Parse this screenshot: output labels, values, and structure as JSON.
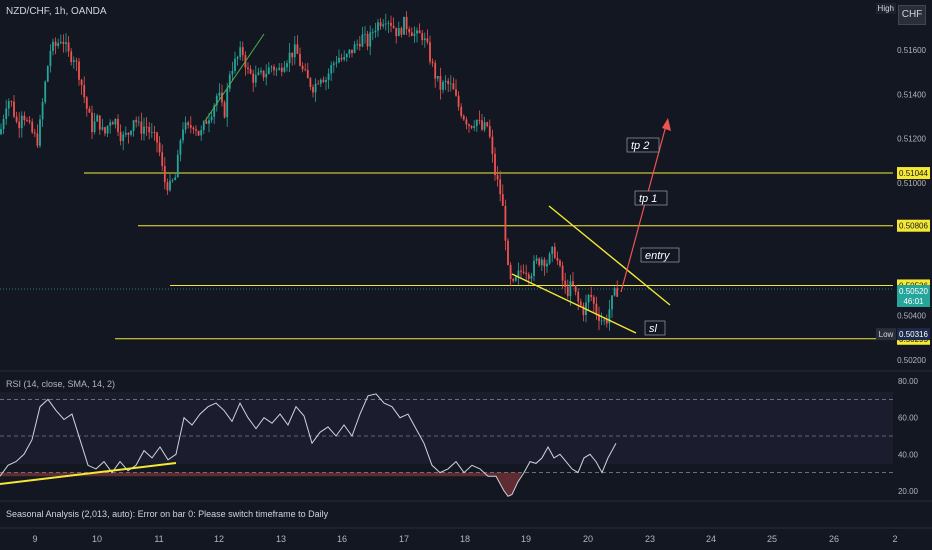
{
  "header": {
    "symbol_line": "NZD/CHF, 1h, OANDA"
  },
  "currency_badge": "CHF",
  "high_badge": "High",
  "low_badge": "Low",
  "rsi_title": "RSI (14, close, SMA, 14, 2)",
  "seasonal_text": "Seasonal Analysis (2,013, auto): Error on bar 0: Please switch timeframe to Daily",
  "colors": {
    "up": "#26a69a",
    "down": "#ef5350",
    "level": "#f5e834",
    "arrow": "#ef5350",
    "background": "#131722"
  },
  "chart_data": [
    {
      "type": "candlestick",
      "title": "NZD/CHF, 1h, OANDA",
      "x_ticks": [
        "9",
        "10",
        "11",
        "12",
        "13",
        "16",
        "17",
        "18",
        "19",
        "20",
        "23",
        "24",
        "25",
        "26",
        "2"
      ],
      "y_ticks": [
        "0.51600",
        "0.51400",
        "0.51200",
        "0.51000",
        "0.50400",
        "0.50200"
      ],
      "ylim": [
        0.5019,
        0.5179
      ],
      "price_path": [
        [
          0,
          0.5122
        ],
        [
          6,
          0.5136
        ],
        [
          10,
          0.5138
        ],
        [
          18,
          0.5125
        ],
        [
          22,
          0.5133
        ],
        [
          28,
          0.5126
        ],
        [
          34,
          0.5121
        ],
        [
          38,
          0.5119
        ],
        [
          44,
          0.5141
        ],
        [
          50,
          0.516
        ],
        [
          56,
          0.5162
        ],
        [
          62,
          0.5166
        ],
        [
          68,
          0.5158
        ],
        [
          74,
          0.5157
        ],
        [
          80,
          0.5148
        ],
        [
          86,
          0.5135
        ],
        [
          92,
          0.5125
        ],
        [
          98,
          0.5129
        ],
        [
          104,
          0.5121
        ],
        [
          110,
          0.5129
        ],
        [
          116,
          0.5128
        ],
        [
          122,
          0.512
        ],
        [
          128,
          0.5122
        ],
        [
          134,
          0.513
        ],
        [
          140,
          0.5124
        ],
        [
          146,
          0.5126
        ],
        [
          152,
          0.5121
        ],
        [
          158,
          0.5118
        ],
        [
          164,
          0.5101
        ],
        [
          170,
          0.5098
        ],
        [
          176,
          0.5103
        ],
        [
          182,
          0.5126
        ],
        [
          188,
          0.5124
        ],
        [
          194,
          0.5127
        ],
        [
          200,
          0.5121
        ],
        [
          206,
          0.5128
        ],
        [
          212,
          0.5133
        ],
        [
          218,
          0.5141
        ],
        [
          224,
          0.513
        ],
        [
          230,
          0.5151
        ],
        [
          236,
          0.5155
        ],
        [
          242,
          0.516
        ],
        [
          248,
          0.515
        ],
        [
          254,
          0.5147
        ],
        [
          260,
          0.5148
        ],
        [
          266,
          0.515
        ],
        [
          272,
          0.5153
        ],
        [
          278,
          0.515
        ],
        [
          284,
          0.5155
        ],
        [
          290,
          0.5158
        ],
        [
          296,
          0.516
        ],
        [
          302,
          0.5151
        ],
        [
          308,
          0.5146
        ],
        [
          314,
          0.5143
        ],
        [
          320,
          0.5149
        ],
        [
          326,
          0.5147
        ],
        [
          332,
          0.5153
        ],
        [
          338,
          0.5157
        ],
        [
          344,
          0.5155
        ],
        [
          350,
          0.5159
        ],
        [
          356,
          0.5162
        ],
        [
          362,
          0.5166
        ],
        [
          368,
          0.5163
        ],
        [
          374,
          0.517
        ],
        [
          380,
          0.5173
        ],
        [
          386,
          0.5175
        ],
        [
          392,
          0.5172
        ],
        [
          398,
          0.5167
        ],
        [
          404,
          0.5172
        ],
        [
          410,
          0.517
        ],
        [
          416,
          0.5166
        ],
        [
          422,
          0.5167
        ],
        [
          428,
          0.516
        ],
        [
          434,
          0.515
        ],
        [
          440,
          0.5143
        ],
        [
          446,
          0.5145
        ],
        [
          452,
          0.5143
        ],
        [
          458,
          0.5135
        ],
        [
          464,
          0.513
        ],
        [
          470,
          0.5126
        ],
        [
          476,
          0.5129
        ],
        [
          482,
          0.5124
        ],
        [
          488,
          0.5126
        ],
        [
          494,
          0.5106
        ],
        [
          500,
          0.5096
        ],
        [
          504,
          0.5085
        ],
        [
          508,
          0.506
        ],
        [
          512,
          0.5052
        ],
        [
          518,
          0.5058
        ],
        [
          524,
          0.5062
        ],
        [
          530,
          0.5059
        ],
        [
          536,
          0.5064
        ],
        [
          542,
          0.5066
        ],
        [
          548,
          0.5064
        ],
        [
          554,
          0.507
        ],
        [
          560,
          0.506
        ],
        [
          566,
          0.505
        ],
        [
          572,
          0.5054
        ],
        [
          578,
          0.5046
        ],
        [
          584,
          0.5042
        ],
        [
          590,
          0.505
        ],
        [
          596,
          0.5042
        ],
        [
          602,
          0.5038
        ],
        [
          606,
          0.5037
        ],
        [
          610,
          0.5044
        ],
        [
          614,
          0.5049
        ],
        [
          618,
          0.5052
        ]
      ],
      "horizontal_levels": [
        {
          "price": 0.51044,
          "label": "0.51044"
        },
        {
          "price": 0.50806,
          "label": "0.50806"
        },
        {
          "price": 0.50536,
          "label": "0.50536"
        },
        {
          "price": 0.50295,
          "label": "0.50295"
        }
      ],
      "current_price": {
        "price": "0.50520",
        "countdown": "46:01"
      },
      "low_marker": {
        "price": "0.50316"
      },
      "annotations": [
        {
          "text": "tp 2",
          "x": 630,
          "y": 148
        },
        {
          "text": "tp 1",
          "x": 638,
          "y": 201
        },
        {
          "text": "entry",
          "x": 644,
          "y": 258
        },
        {
          "text": "sl",
          "x": 648,
          "y": 331
        }
      ],
      "patterns": "falling wedge with projected upward arrow",
      "grid": false
    },
    {
      "type": "line",
      "title": "RSI (14, close, SMA, 14, 2)",
      "y_ticks": [
        "80.00",
        "60.00",
        "40.00",
        "20.00"
      ],
      "ylim": [
        15,
        85
      ],
      "band_levels": [
        70,
        50,
        30
      ],
      "values": [
        [
          0,
          28
        ],
        [
          8,
          34
        ],
        [
          16,
          36
        ],
        [
          24,
          40
        ],
        [
          32,
          48
        ],
        [
          40,
          66
        ],
        [
          48,
          70
        ],
        [
          56,
          64
        ],
        [
          64,
          59
        ],
        [
          72,
          62
        ],
        [
          80,
          48
        ],
        [
          88,
          34
        ],
        [
          96,
          32
        ],
        [
          104,
          36
        ],
        [
          112,
          30
        ],
        [
          120,
          36
        ],
        [
          128,
          31
        ],
        [
          136,
          34
        ],
        [
          144,
          42
        ],
        [
          152,
          38
        ],
        [
          160,
          44
        ],
        [
          168,
          37
        ],
        [
          176,
          40
        ],
        [
          184,
          60
        ],
        [
          192,
          56
        ],
        [
          200,
          62
        ],
        [
          208,
          66
        ],
        [
          216,
          68
        ],
        [
          224,
          64
        ],
        [
          232,
          58
        ],
        [
          240,
          68
        ],
        [
          248,
          60
        ],
        [
          256,
          54
        ],
        [
          264,
          60
        ],
        [
          272,
          57
        ],
        [
          280,
          62
        ],
        [
          288,
          56
        ],
        [
          296,
          66
        ],
        [
          304,
          61
        ],
        [
          312,
          46
        ],
        [
          320,
          52
        ],
        [
          328,
          55
        ],
        [
          336,
          50
        ],
        [
          344,
          56
        ],
        [
          352,
          50
        ],
        [
          360,
          62
        ],
        [
          368,
          72
        ],
        [
          376,
          73
        ],
        [
          384,
          68
        ],
        [
          392,
          66
        ],
        [
          400,
          60
        ],
        [
          408,
          62
        ],
        [
          416,
          54
        ],
        [
          424,
          46
        ],
        [
          432,
          34
        ],
        [
          440,
          30
        ],
        [
          448,
          32
        ],
        [
          456,
          36
        ],
        [
          464,
          30
        ],
        [
          472,
          34
        ],
        [
          480,
          32
        ],
        [
          488,
          28
        ],
        [
          496,
          28
        ],
        [
          504,
          20
        ],
        [
          508,
          17
        ],
        [
          512,
          18
        ],
        [
          518,
          25
        ],
        [
          524,
          30
        ],
        [
          530,
          36
        ],
        [
          536,
          35
        ],
        [
          542,
          38
        ],
        [
          548,
          44
        ],
        [
          554,
          38
        ],
        [
          560,
          40
        ],
        [
          566,
          36
        ],
        [
          572,
          32
        ],
        [
          578,
          30
        ],
        [
          584,
          38
        ],
        [
          590,
          40
        ],
        [
          596,
          36
        ],
        [
          602,
          30
        ],
        [
          608,
          38
        ],
        [
          612,
          42
        ],
        [
          616,
          46
        ]
      ],
      "trendline": "rising support line across lows"
    }
  ]
}
